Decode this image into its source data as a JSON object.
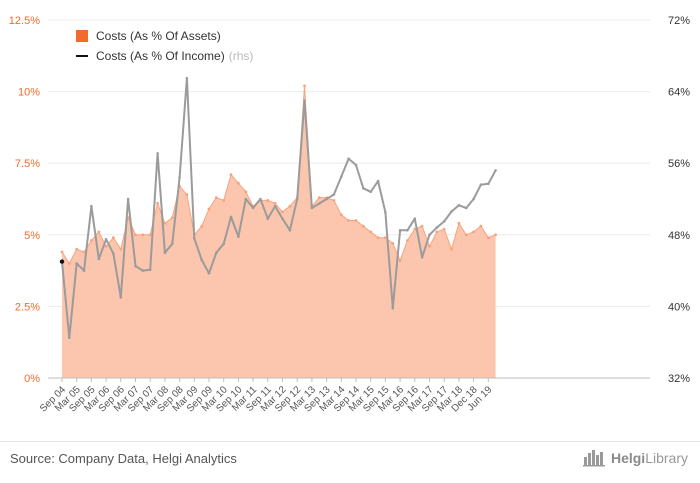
{
  "chart_data": {
    "type": "area+line",
    "left_axis": {
      "ticks": [
        "0%",
        "2.5%",
        "5%",
        "7.5%",
        "10%",
        "12.5%"
      ],
      "range": [
        0,
        12.5
      ],
      "color": "#f26b2e"
    },
    "right_axis": {
      "ticks": [
        "32%",
        "40%",
        "48%",
        "56%",
        "64%",
        "72%"
      ],
      "range": [
        32,
        72
      ],
      "color": "#333333"
    },
    "x_labels": [
      "Sep 04",
      "Mar 05",
      "Sep 05",
      "Mar 06",
      "Sep 06",
      "Mar 07",
      "Sep 07",
      "Mar 08",
      "Sep 08",
      "Mar 09",
      "Sep 09",
      "Mar 10",
      "Sep 10",
      "Mar 11",
      "Sep 11",
      "Mar 12",
      "Sep 12",
      "Mar 13",
      "Sep 13",
      "Mar 14",
      "Sep 14",
      "Mar 15",
      "Sep 15",
      "Mar 16",
      "Sep 16",
      "Mar 17",
      "Sep 17",
      "Mar 18",
      "Dec 18",
      "Jun 19"
    ],
    "series": [
      {
        "name": "Costs (As % Of Assets)",
        "axis": "left",
        "type": "area",
        "color": "#f26b2e",
        "fill": "#fbc6ad",
        "x": [
          0,
          0.5,
          1,
          1.5,
          2,
          2.5,
          3,
          3.5,
          4,
          4.5,
          5,
          5.5,
          6,
          6.5,
          7,
          7.5,
          8,
          8.5,
          9,
          9.5,
          10,
          10.5,
          11,
          11.5,
          12,
          12.5,
          13,
          13.5,
          14,
          14.5,
          15,
          15.5,
          16,
          16.5,
          17,
          17.5,
          18,
          18.5,
          19,
          19.5,
          20,
          20.5,
          21,
          21.5,
          22,
          22.5,
          23,
          23.5,
          24,
          24.5,
          25,
          25.5,
          26,
          26.5,
          27,
          27.5,
          28,
          28.5,
          29,
          29.5
        ],
        "values": [
          4.4,
          4.0,
          4.5,
          4.4,
          4.8,
          5.1,
          4.6,
          4.9,
          4.5,
          5.6,
          5.0,
          5.0,
          5.0,
          6.1,
          5.4,
          5.6,
          6.7,
          6.4,
          5.0,
          5.3,
          5.9,
          6.3,
          6.2,
          7.1,
          6.8,
          6.5,
          6.0,
          6.2,
          6.2,
          6.1,
          5.8,
          6.0,
          6.3,
          10.2,
          6.0,
          6.3,
          6.3,
          6.2,
          5.7,
          5.5,
          5.5,
          5.3,
          5.1,
          4.9,
          4.9,
          4.7,
          4.1,
          4.8,
          5.2,
          5.3,
          4.6,
          5.1,
          5.2,
          4.5,
          5.4,
          5.0,
          5.1,
          5.3,
          4.9,
          5.0
        ]
      },
      {
        "name": "Costs (As % Of Income)",
        "note": "(rhs)",
        "axis": "right",
        "type": "line",
        "color": "#111111",
        "highlight_color": "#9b9b9b",
        "x": [
          0,
          0.5,
          1,
          1.5,
          2,
          2.5,
          3,
          3.5,
          4,
          4.5,
          5,
          5.5,
          6,
          6.5,
          7,
          7.5,
          8,
          8.5,
          9,
          9.5,
          10,
          10.5,
          11,
          11.5,
          12,
          12.5,
          13,
          13.5,
          14,
          14.5,
          15,
          15.5,
          16,
          16.5,
          17,
          17.5,
          18,
          18.5,
          19,
          19.5,
          20,
          20.5,
          21,
          21.5,
          22,
          22.5,
          23,
          23.5,
          24,
          24.5,
          25,
          25.5,
          26,
          26.5,
          27,
          27.5,
          28,
          28.5,
          29,
          29.5
        ],
        "values": [
          45.0,
          36.5,
          44.8,
          44.0,
          51.2,
          45.3,
          47.5,
          45.9,
          41.0,
          52.0,
          44.5,
          44.0,
          44.1,
          57.1,
          46.0,
          47.0,
          54.4,
          65.5,
          47.6,
          45.2,
          43.7,
          46.0,
          47.0,
          50.0,
          47.8,
          52.0,
          51.0,
          52.0,
          49.8,
          51.2,
          49.8,
          48.5,
          52.0,
          63.0,
          51.0,
          51.5,
          52.0,
          52.5,
          54.5,
          56.5,
          55.8,
          53.2,
          52.8,
          54.0,
          50.5,
          39.8,
          48.5,
          48.5,
          49.8,
          45.5,
          48.0,
          48.8,
          49.5,
          50.6,
          51.3,
          51.0,
          52.0,
          53.6,
          53.7,
          55.2
        ]
      }
    ]
  },
  "footer": {
    "source": "Source: Company Data, Helgi Analytics",
    "logo_bold": "Helgi",
    "logo_rest": "Library"
  }
}
